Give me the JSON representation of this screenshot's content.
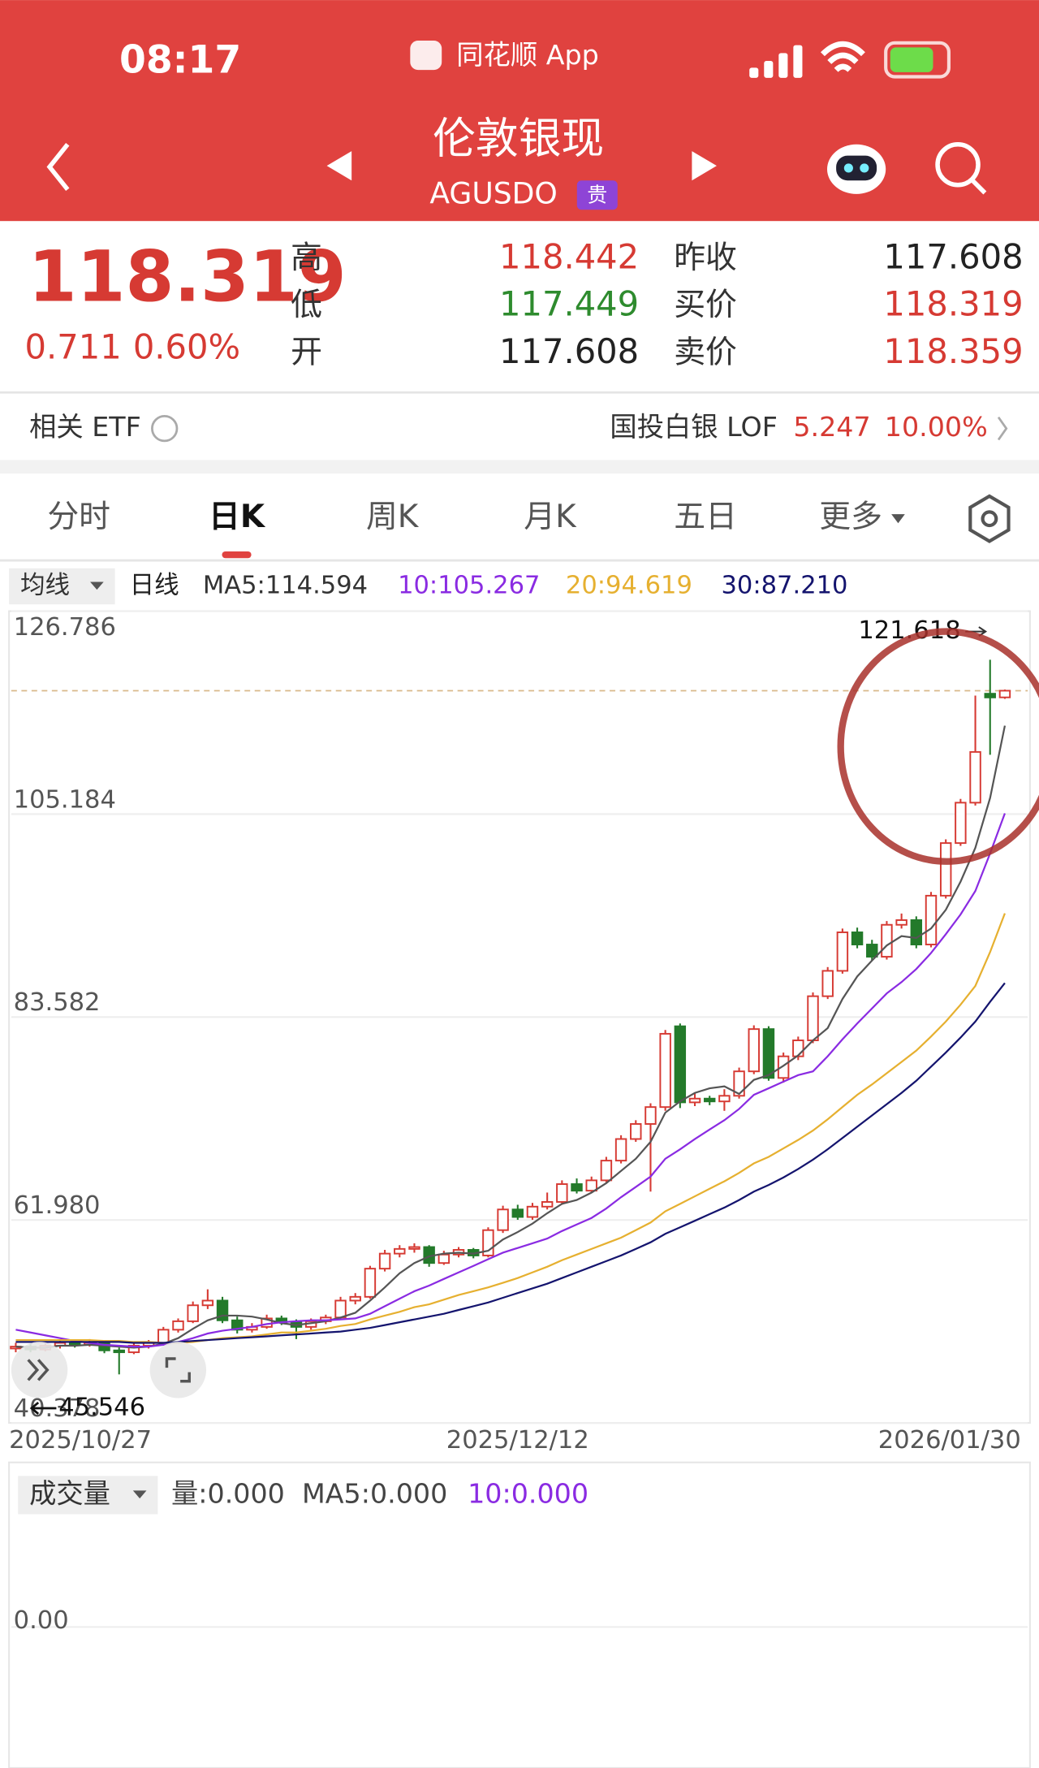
{
  "status_bar": {
    "time": "08:17",
    "app": "同花顺 App"
  },
  "header": {
    "title": "伦敦银现",
    "code": "AGUSDO",
    "badge": "贵"
  },
  "quote": {
    "price": "118.319",
    "change": "0.711",
    "change_pct": "0.60%",
    "fields": [
      {
        "label": "高",
        "value": "118.442"
      },
      {
        "label": "低",
        "value": "117.449"
      },
      {
        "label": "开",
        "value": "117.608"
      },
      {
        "label": "昨收",
        "value": "117.608"
      },
      {
        "label": "买价",
        "value": "118.319"
      },
      {
        "label": "卖价",
        "value": "118.359"
      }
    ]
  },
  "etf": {
    "label": "相关 ETF",
    "name": "国投白银 LOF",
    "price": "5.247",
    "change_pct": "10.00%"
  },
  "tabs": {
    "items": [
      "分时",
      "日K",
      "周K",
      "月K",
      "五日",
      "更多"
    ],
    "active": 1
  },
  "ma_bar": {
    "selector": "均线",
    "period": "日线",
    "legend": [
      "MA5:114.594",
      "10:105.267",
      "20:94.619",
      "30:87.210"
    ]
  },
  "chart_data": {
    "type": "candlestick",
    "ylim": [
      40.378,
      126.786
    ],
    "yticks": [
      40.378,
      {
        "value": 61.98,
        "label": "61.980"
      },
      83.582,
      105.184,
      126.786
    ],
    "categories": [
      "2025/10/27",
      null,
      null,
      null,
      null,
      null,
      null,
      null,
      null,
      null,
      null,
      null,
      null,
      null,
      null,
      null,
      null,
      null,
      null,
      null,
      null,
      null,
      null,
      null,
      null,
      null,
      null,
      null,
      null,
      null,
      null,
      null,
      null,
      null,
      "2025/12/12",
      null,
      null,
      null,
      null,
      null,
      null,
      null,
      null,
      null,
      null,
      null,
      null,
      null,
      null,
      null,
      null,
      null,
      null,
      null,
      null,
      null,
      null,
      null,
      null,
      null,
      null,
      null,
      null,
      null,
      null,
      null,
      null,
      "2026/01/30"
    ],
    "up_color": "#d63a33",
    "down_color": "#237a2a",
    "candles": [
      [
        48.3,
        48.9,
        47.9,
        48.5
      ],
      [
        48.5,
        48.8,
        47.9,
        48.2
      ],
      [
        48.2,
        48.9,
        48.0,
        48.6
      ],
      [
        48.6,
        49.2,
        48.3,
        48.9
      ],
      [
        48.9,
        49.1,
        48.4,
        48.7
      ],
      [
        48.7,
        49.3,
        48.5,
        48.9
      ],
      [
        48.9,
        49.0,
        47.8,
        48.1
      ],
      [
        48.1,
        48.4,
        45.546,
        47.9
      ],
      [
        47.9,
        48.9,
        47.7,
        48.6
      ],
      [
        48.6,
        49.2,
        48.3,
        48.9
      ],
      [
        48.9,
        50.6,
        48.7,
        50.3
      ],
      [
        50.3,
        51.5,
        50.0,
        51.2
      ],
      [
        51.2,
        53.3,
        51.0,
        52.9
      ],
      [
        52.9,
        54.6,
        52.5,
        53.4
      ],
      [
        53.4,
        53.8,
        51.0,
        51.3
      ],
      [
        51.3,
        51.7,
        49.9,
        50.3
      ],
      [
        50.3,
        51.0,
        50.0,
        50.6
      ],
      [
        50.6,
        51.9,
        50.4,
        51.5
      ],
      [
        51.5,
        51.8,
        50.8,
        51.1
      ],
      [
        51.1,
        51.4,
        49.3,
        50.6
      ],
      [
        50.6,
        51.5,
        50.3,
        51.2
      ],
      [
        51.2,
        51.9,
        50.9,
        51.6
      ],
      [
        51.6,
        53.8,
        51.4,
        53.4
      ],
      [
        53.4,
        54.2,
        53.0,
        53.8
      ],
      [
        53.8,
        57.1,
        53.6,
        56.8
      ],
      [
        56.8,
        58.8,
        56.5,
        58.4
      ],
      [
        58.4,
        59.3,
        58.0,
        58.9
      ],
      [
        58.9,
        59.5,
        58.5,
        59.1
      ],
      [
        59.1,
        59.3,
        57.0,
        57.4
      ],
      [
        57.4,
        58.7,
        57.2,
        58.3
      ],
      [
        58.3,
        59.1,
        58.0,
        58.8
      ],
      [
        58.8,
        59.0,
        57.9,
        58.2
      ],
      [
        58.2,
        61.2,
        58.0,
        60.9
      ],
      [
        60.9,
        63.5,
        60.6,
        63.1
      ],
      [
        63.1,
        63.6,
        62.0,
        62.3
      ],
      [
        62.3,
        63.8,
        62.0,
        63.4
      ],
      [
        63.4,
        64.9,
        63.1,
        63.9
      ],
      [
        63.9,
        66.2,
        63.6,
        65.8
      ],
      [
        65.8,
        66.4,
        64.8,
        65.1
      ],
      [
        65.1,
        66.6,
        64.9,
        66.2
      ],
      [
        66.2,
        68.7,
        66.0,
        68.3
      ],
      [
        68.3,
        71.0,
        68.0,
        70.6
      ],
      [
        70.6,
        72.6,
        70.3,
        72.2
      ],
      [
        72.2,
        74.4,
        65.0,
        74.0
      ],
      [
        74.0,
        82.2,
        73.6,
        81.8
      ],
      [
        82.6,
        82.9,
        73.9,
        74.5
      ],
      [
        74.5,
        75.5,
        74.1,
        74.9
      ],
      [
        74.9,
        75.2,
        74.2,
        74.6
      ],
      [
        74.6,
        75.9,
        73.6,
        75.2
      ],
      [
        75.2,
        78.2,
        74.9,
        77.8
      ],
      [
        77.8,
        82.7,
        77.5,
        82.3
      ],
      [
        82.3,
        82.6,
        76.8,
        77.1
      ],
      [
        77.1,
        79.8,
        76.6,
        79.4
      ],
      [
        79.4,
        81.5,
        79.0,
        81.1
      ],
      [
        81.1,
        86.2,
        80.8,
        85.8
      ],
      [
        85.8,
        88.9,
        85.5,
        88.5
      ],
      [
        88.5,
        93.0,
        88.2,
        92.6
      ],
      [
        92.6,
        93.1,
        90.9,
        91.3
      ],
      [
        91.3,
        91.8,
        89.6,
        90.0
      ],
      [
        90.0,
        93.8,
        89.7,
        93.4
      ],
      [
        93.4,
        94.6,
        93.0,
        93.9
      ],
      [
        93.9,
        94.3,
        90.9,
        91.3
      ],
      [
        91.3,
        96.9,
        91.0,
        96.5
      ],
      [
        96.5,
        102.5,
        96.2,
        102.1
      ],
      [
        102.1,
        106.8,
        101.8,
        106.4
      ],
      [
        106.4,
        117.8,
        106.1,
        111.8
      ],
      [
        118.0,
        121.618,
        111.5,
        117.6
      ],
      [
        117.608,
        118.442,
        117.449,
        118.319
      ]
    ],
    "series": [
      {
        "color": "#555555",
        "values": [
          48.5,
          48.4,
          48.4,
          48.6,
          48.6,
          48.7,
          48.6,
          48.5,
          48.4,
          48.5,
          48.8,
          49.4,
          50.4,
          51.3,
          51.8,
          51.8,
          51.7,
          51.4,
          51.0,
          50.8,
          51.0,
          51.2,
          51.6,
          52.1,
          53.4,
          54.8,
          56.3,
          57.4,
          58.1,
          58.4,
          58.5,
          58.4,
          58.7,
          59.9,
          60.7,
          61.6,
          62.7,
          63.7,
          64.1,
          64.9,
          65.9,
          67.2,
          68.5,
          70.3,
          73.4,
          74.6,
          75.5,
          76.0,
          76.2,
          75.4,
          76.9,
          77.4,
          78.4,
          79.5,
          81.1,
          82.4,
          85.5,
          87.9,
          89.6,
          91.2,
          92.2,
          92.0,
          93.0,
          95.0,
          98.0,
          101.6,
          106.9,
          114.594
        ]
      },
      {
        "color": "#8a2be2",
        "values": [
          50.3,
          50.0,
          49.7,
          49.4,
          49.1,
          48.9,
          48.7,
          48.6,
          48.5,
          48.5,
          48.7,
          49.0,
          49.4,
          49.9,
          50.2,
          50.4,
          50.6,
          50.9,
          51.1,
          51.2,
          51.3,
          51.3,
          51.4,
          51.5,
          52.0,
          52.8,
          53.6,
          54.4,
          55.0,
          55.7,
          56.4,
          57.1,
          57.8,
          58.5,
          59.0,
          59.5,
          60.0,
          60.8,
          61.5,
          62.2,
          63.2,
          64.4,
          65.5,
          66.6,
          68.5,
          69.5,
          70.6,
          71.6,
          72.6,
          73.8,
          75.3,
          76.0,
          76.7,
          77.4,
          77.8,
          79.4,
          81.2,
          82.9,
          84.5,
          86.1,
          87.3,
          88.7,
          90.4,
          92.4,
          94.5,
          97.0,
          101.0,
          105.267
        ]
      },
      {
        "color": "#e6b030",
        "values": [
          49.2,
          49.2,
          49.2,
          49.2,
          49.2,
          49.2,
          49.1,
          49.1,
          49.0,
          49.0,
          48.9,
          48.9,
          49.0,
          49.2,
          49.4,
          49.5,
          49.6,
          49.8,
          50.0,
          50.0,
          50.2,
          50.4,
          50.7,
          50.9,
          51.4,
          51.8,
          52.2,
          52.7,
          53.0,
          53.5,
          54.0,
          54.4,
          54.8,
          55.3,
          55.8,
          56.4,
          57.0,
          57.7,
          58.3,
          58.9,
          59.5,
          60.1,
          60.9,
          61.7,
          62.9,
          63.7,
          64.5,
          65.3,
          66.1,
          67.0,
          68.0,
          68.7,
          69.6,
          70.5,
          71.5,
          72.7,
          74.0,
          75.3,
          76.4,
          77.6,
          78.8,
          80.0,
          81.5,
          83.1,
          84.9,
          86.9,
          90.5,
          94.619
        ]
      },
      {
        "color": "#14146e",
        "values": [
          49.0,
          49.0,
          49.0,
          49.0,
          49.0,
          49.0,
          49.0,
          49.0,
          48.9,
          48.9,
          48.9,
          49.0,
          49.1,
          49.2,
          49.3,
          49.4,
          49.5,
          49.6,
          49.7,
          49.8,
          49.9,
          50.0,
          50.1,
          50.3,
          50.5,
          50.8,
          51.1,
          51.4,
          51.7,
          52.0,
          52.4,
          52.8,
          53.2,
          53.7,
          54.2,
          54.7,
          55.2,
          55.8,
          56.4,
          57.0,
          57.6,
          58.2,
          58.9,
          59.6,
          60.5,
          61.2,
          61.9,
          62.6,
          63.3,
          64.1,
          65.0,
          65.7,
          66.5,
          67.4,
          68.4,
          69.5,
          70.7,
          71.9,
          73.1,
          74.3,
          75.5,
          76.8,
          78.3,
          79.8,
          81.4,
          83.1,
          85.2,
          87.21
        ]
      }
    ],
    "high_label": "121.618",
    "low_label": "45.546"
  },
  "volume": {
    "selector": "成交量",
    "legend": [
      "量:0.000",
      "MA5:0.000",
      "10:0.000"
    ],
    "ytick": "0.00"
  }
}
